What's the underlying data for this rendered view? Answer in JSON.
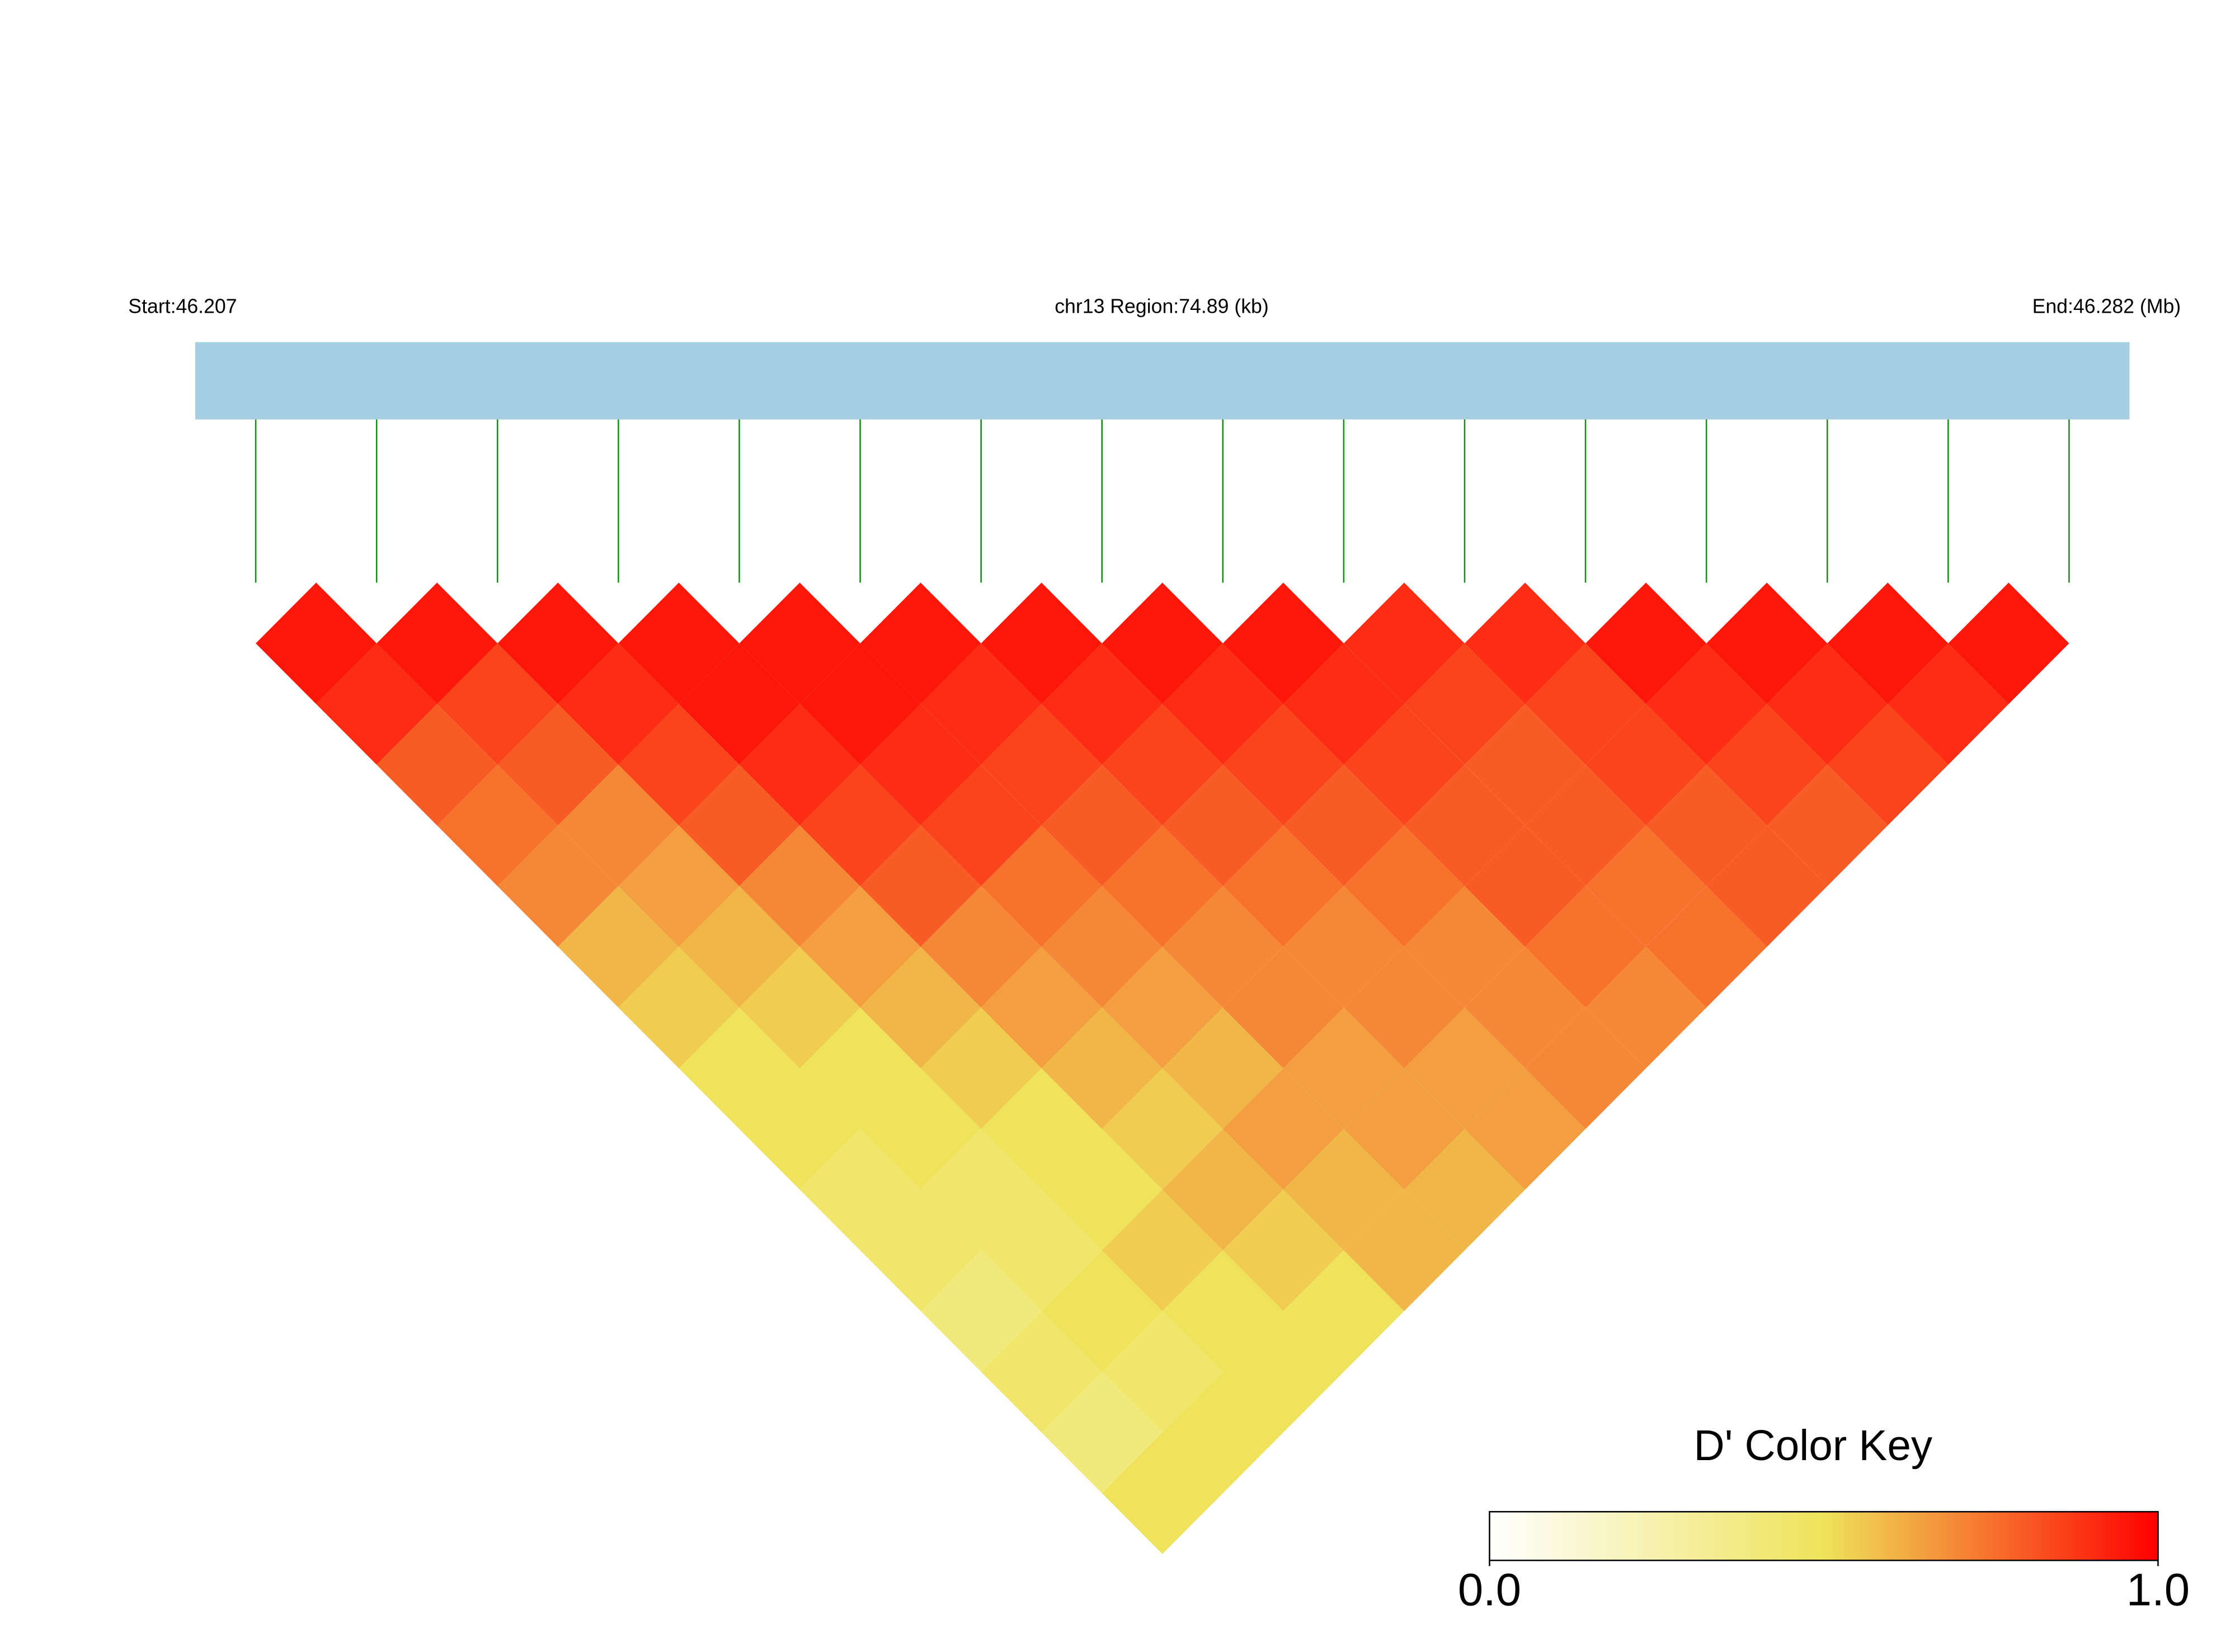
{
  "chart_data": {
    "type": "ld_heatmap",
    "start_label": "Start:46.207",
    "region_label": "chr13 Region:74.89 (kb)",
    "end_label": "End:46.282 (Mb)",
    "legend_title": "D' Color Key",
    "colorscale": [
      "#ffffff",
      "#eee35a",
      "#ff0000"
    ],
    "legend_ticks": [
      {
        "value": 0,
        "label": "0.0"
      },
      {
        "value": 1,
        "label": "1.0"
      }
    ],
    "dprime": [
      [
        0.95,
        0.9,
        0.8,
        0.75,
        0.7,
        0.6,
        0.55,
        0.5,
        0.5,
        0.45,
        0.45,
        0.4,
        0.45,
        0.4,
        0.5
      ],
      [
        0.95,
        0.85,
        0.8,
        0.7,
        0.65,
        0.6,
        0.55,
        0.5,
        0.5,
        0.45,
        0.45,
        0.5,
        0.45,
        0.5
      ],
      [
        0.95,
        0.9,
        0.85,
        0.8,
        0.7,
        0.65,
        0.6,
        0.55,
        0.5,
        0.5,
        0.55,
        0.5,
        0.5
      ],
      [
        0.95,
        0.95,
        0.9,
        0.85,
        0.8,
        0.7,
        0.65,
        0.6,
        0.55,
        0.6,
        0.55,
        0.5
      ],
      [
        0.95,
        0.95,
        0.9,
        0.85,
        0.75,
        0.7,
        0.65,
        0.6,
        0.65,
        0.6,
        0.6
      ],
      [
        0.95,
        0.9,
        0.85,
        0.8,
        0.75,
        0.7,
        0.7,
        0.65,
        0.65,
        0.6
      ],
      [
        0.95,
        0.9,
        0.85,
        0.8,
        0.75,
        0.7,
        0.7,
        0.65,
        0.65
      ],
      [
        0.95,
        0.9,
        0.85,
        0.8,
        0.75,
        0.7,
        0.7,
        0.7
      ],
      [
        0.95,
        0.9,
        0.85,
        0.8,
        0.8,
        0.75,
        0.7
      ],
      [
        0.9,
        0.85,
        0.8,
        0.8,
        0.75,
        0.75
      ],
      [
        0.9,
        0.85,
        0.85,
        0.8,
        0.8
      ],
      [
        0.95,
        0.9,
        0.85,
        0.8
      ],
      [
        0.95,
        0.9,
        0.85
      ],
      [
        0.95,
        0.9
      ],
      [
        0.95
      ]
    ]
  }
}
